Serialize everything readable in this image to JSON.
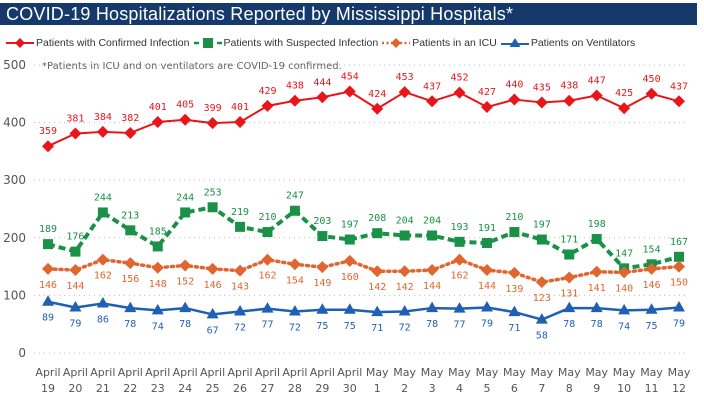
{
  "header": {
    "title": "COVID-19 Hospitalizations Reported by Mississippi Hospitals*"
  },
  "colors": {
    "title_bar": "#15396b",
    "confirmed": "#e8151b",
    "suspected": "#1a9147",
    "icu": "#e0652e",
    "ventilators": "#1f5fb4",
    "grid": "#bdbdbd"
  },
  "chart_data": {
    "type": "line",
    "title": "COVID-19 Hospitalizations Reported by Mississippi Hospitals*",
    "annotation": "*Patients in ICU and on ventilators are COVID-19 confirmed.",
    "xlabel": "",
    "ylabel": "",
    "ylim": [
      0,
      500
    ],
    "yticks": [
      0,
      100,
      200,
      300,
      400,
      500
    ],
    "grid": true,
    "legend_position": "top",
    "categories": [
      [
        "April",
        "19"
      ],
      [
        "April",
        "20"
      ],
      [
        "April",
        "21"
      ],
      [
        "April",
        "22"
      ],
      [
        "April",
        "23"
      ],
      [
        "April",
        "24"
      ],
      [
        "April",
        "25"
      ],
      [
        "April",
        "26"
      ],
      [
        "April",
        "27"
      ],
      [
        "April",
        "28"
      ],
      [
        "April",
        "29"
      ],
      [
        "April",
        "30"
      ],
      [
        "May",
        "1"
      ],
      [
        "May",
        "2"
      ],
      [
        "May",
        "3"
      ],
      [
        "May",
        "4"
      ],
      [
        "May",
        "5"
      ],
      [
        "May",
        "6"
      ],
      [
        "May",
        "7"
      ],
      [
        "May",
        "8"
      ],
      [
        "May",
        "9"
      ],
      [
        "May",
        "10"
      ],
      [
        "May",
        "11"
      ],
      [
        "May",
        "12"
      ]
    ],
    "series": [
      {
        "name": "Patients with Confirmed Infection",
        "key": "confirmed",
        "marker": "diamond",
        "line": "solid",
        "label_position": "above",
        "values": [
          359,
          381,
          384,
          382,
          401,
          405,
          399,
          401,
          429,
          438,
          444,
          454,
          424,
          453,
          437,
          452,
          427,
          440,
          435,
          438,
          447,
          425,
          450,
          437
        ]
      },
      {
        "name": "Patients with Suspected Infection",
        "key": "suspected",
        "marker": "square",
        "line": "dashed",
        "label_position": "above",
        "values": [
          189,
          176,
          244,
          213,
          185,
          244,
          253,
          219,
          210,
          247,
          203,
          197,
          208,
          204,
          204,
          193,
          191,
          210,
          197,
          171,
          198,
          147,
          154,
          167
        ]
      },
      {
        "name": "Patients in an ICU",
        "key": "icu",
        "marker": "diamond",
        "line": "dotted",
        "label_position": "below",
        "values": [
          146,
          144,
          162,
          156,
          148,
          152,
          146,
          143,
          162,
          154,
          149,
          160,
          142,
          142,
          144,
          162,
          144,
          139,
          123,
          131,
          141,
          140,
          146,
          150
        ]
      },
      {
        "name": "Patients on Ventilators",
        "key": "ventilators",
        "marker": "triangle",
        "line": "solid",
        "label_position": "below",
        "values": [
          89,
          79,
          86,
          78,
          74,
          78,
          67,
          72,
          77,
          72,
          75,
          75,
          71,
          72,
          78,
          77,
          79,
          71,
          58,
          78,
          78,
          74,
          75,
          79
        ]
      }
    ]
  }
}
